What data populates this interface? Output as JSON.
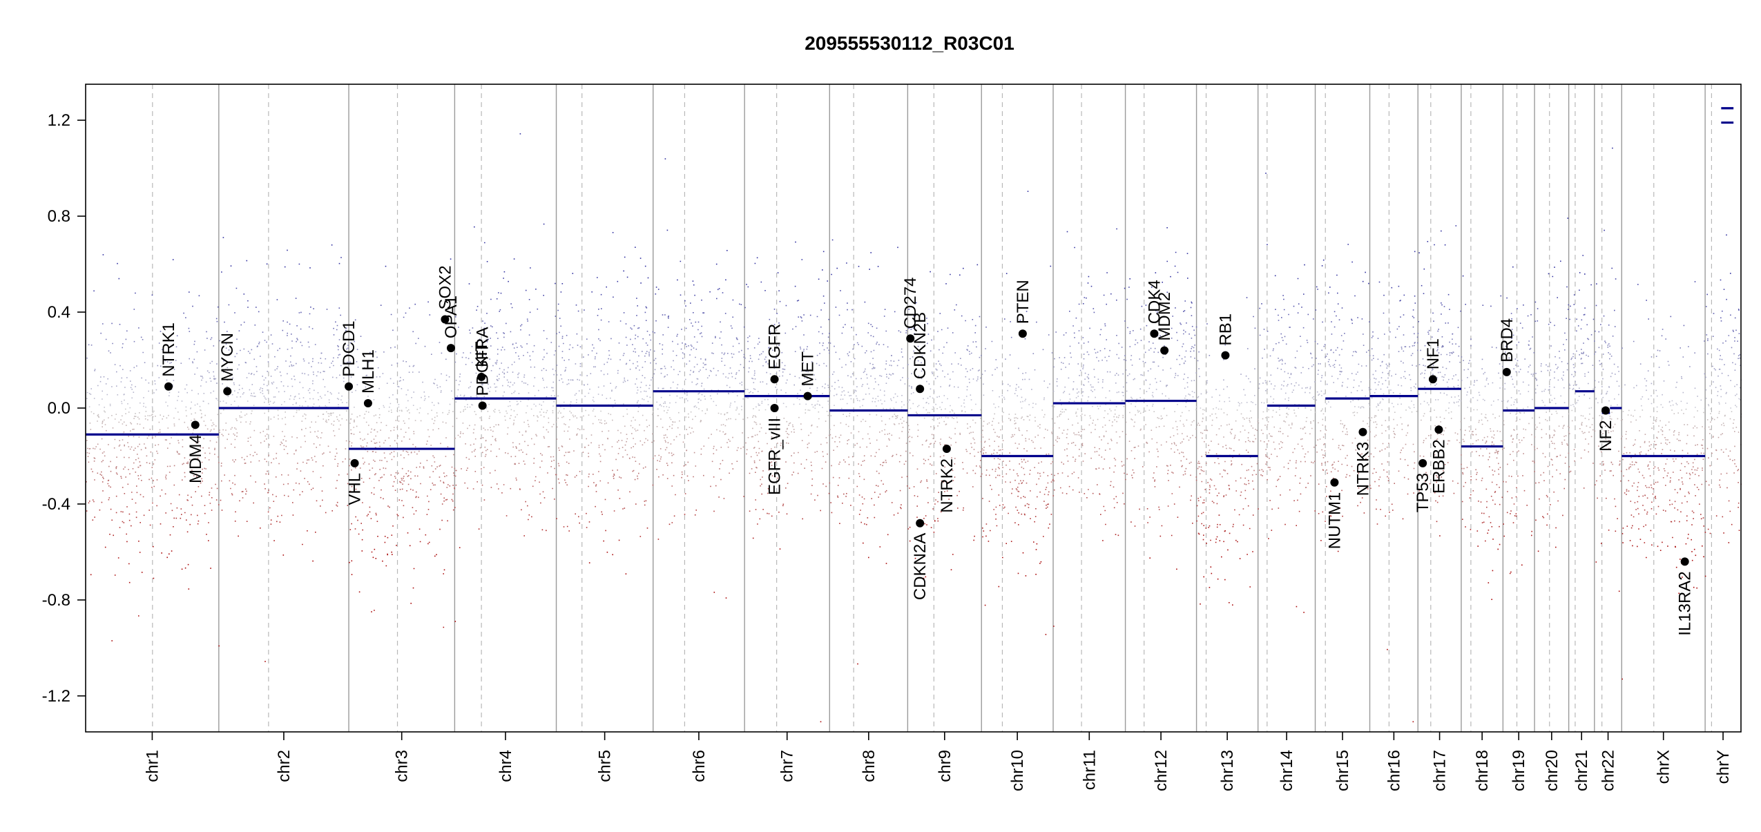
{
  "chart_data": {
    "type": "scatter",
    "title": "209555530112_R03C01",
    "ylim": [
      -1.35,
      1.35
    ],
    "yticks": [
      -1.2,
      -0.8,
      -0.4,
      0.0,
      0.4,
      0.8,
      1.2
    ],
    "ytick_labels": [
      "-1.2",
      "-0.8",
      "-0.4",
      "0.0",
      "0.4",
      "0.8",
      "1.2"
    ],
    "x_domain": [
      0,
      3095
    ],
    "grid": "vertical chromosome separators (solid) and centromere lines (dashed)",
    "chromosomes": [
      {
        "name": "chr1",
        "start": 0,
        "end": 249,
        "centromere": 125,
        "segments": [
          {
            "start": 0,
            "end": 249,
            "value": -0.11
          }
        ]
      },
      {
        "name": "chr2",
        "start": 249,
        "end": 492,
        "centromere": 342,
        "segments": [
          {
            "start": 249,
            "end": 492,
            "value": 0.0
          }
        ]
      },
      {
        "name": "chr3",
        "start": 492,
        "end": 690,
        "centromere": 583,
        "segments": [
          {
            "start": 492,
            "end": 690,
            "value": -0.17
          }
        ]
      },
      {
        "name": "chr4",
        "start": 690,
        "end": 880,
        "centromere": 740,
        "segments": [
          {
            "start": 690,
            "end": 880,
            "value": 0.04
          }
        ]
      },
      {
        "name": "chr5",
        "start": 880,
        "end": 1061,
        "centromere": 928,
        "segments": [
          {
            "start": 880,
            "end": 1061,
            "value": 0.01
          }
        ]
      },
      {
        "name": "chr6",
        "start": 1061,
        "end": 1232,
        "centromere": 1120,
        "segments": [
          {
            "start": 1061,
            "end": 1232,
            "value": 0.07
          }
        ]
      },
      {
        "name": "chr7",
        "start": 1232,
        "end": 1391,
        "centromere": 1292,
        "segments": [
          {
            "start": 1232,
            "end": 1391,
            "value": 0.05
          }
        ]
      },
      {
        "name": "chr8",
        "start": 1391,
        "end": 1537,
        "centromere": 1436,
        "segments": [
          {
            "start": 1391,
            "end": 1537,
            "value": -0.01
          }
        ]
      },
      {
        "name": "chr9",
        "start": 1537,
        "end": 1675,
        "centromere": 1586,
        "segments": [
          {
            "start": 1537,
            "end": 1675,
            "value": -0.03
          }
        ]
      },
      {
        "name": "chr10",
        "start": 1675,
        "end": 1809,
        "centromere": 1714,
        "segments": [
          {
            "start": 1675,
            "end": 1809,
            "value": -0.2
          }
        ]
      },
      {
        "name": "chr11",
        "start": 1809,
        "end": 1944,
        "centromere": 1862,
        "segments": [
          {
            "start": 1809,
            "end": 1944,
            "value": 0.02
          }
        ]
      },
      {
        "name": "chr12",
        "start": 1944,
        "end": 2077,
        "centromere": 1979,
        "segments": [
          {
            "start": 1944,
            "end": 2077,
            "value": 0.03
          }
        ]
      },
      {
        "name": "chr13",
        "start": 2077,
        "end": 2192,
        "centromere": 2095,
        "segments": [
          {
            "start": 2095,
            "end": 2192,
            "value": -0.2
          }
        ]
      },
      {
        "name": "chr14",
        "start": 2192,
        "end": 2299,
        "centromere": 2209,
        "segments": [
          {
            "start": 2209,
            "end": 2299,
            "value": 0.01
          }
        ]
      },
      {
        "name": "chr15",
        "start": 2299,
        "end": 2401,
        "centromere": 2318,
        "segments": [
          {
            "start": 2318,
            "end": 2401,
            "value": 0.04
          }
        ]
      },
      {
        "name": "chr16",
        "start": 2401,
        "end": 2491,
        "centromere": 2437,
        "segments": [
          {
            "start": 2401,
            "end": 2491,
            "value": 0.05
          }
        ]
      },
      {
        "name": "chr17",
        "start": 2491,
        "end": 2572,
        "centromere": 2515,
        "segments": [
          {
            "start": 2491,
            "end": 2572,
            "value": 0.08
          }
        ]
      },
      {
        "name": "chr18",
        "start": 2572,
        "end": 2650,
        "centromere": 2590,
        "segments": [
          {
            "start": 2572,
            "end": 2650,
            "value": -0.16
          }
        ]
      },
      {
        "name": "chr19",
        "start": 2650,
        "end": 2709,
        "centromere": 2676,
        "segments": [
          {
            "start": 2650,
            "end": 2709,
            "value": -0.01
          }
        ]
      },
      {
        "name": "chr20",
        "start": 2709,
        "end": 2773,
        "centromere": 2737,
        "segments": [
          {
            "start": 2709,
            "end": 2773,
            "value": 0.0
          }
        ]
      },
      {
        "name": "chr21",
        "start": 2773,
        "end": 2821,
        "centromere": 2785,
        "segments": [
          {
            "start": 2785,
            "end": 2821,
            "value": 0.07
          }
        ]
      },
      {
        "name": "chr22",
        "start": 2821,
        "end": 2872,
        "centromere": 2835,
        "segments": [
          {
            "start": 2835,
            "end": 2850,
            "value": -0.02
          },
          {
            "start": 2850,
            "end": 2872,
            "value": 0.0
          }
        ]
      },
      {
        "name": "chrX",
        "start": 2872,
        "end": 3028,
        "centromere": 2932,
        "segments": [
          {
            "start": 2872,
            "end": 3028,
            "value": -0.2
          }
        ]
      },
      {
        "name": "chrY",
        "start": 3028,
        "end": 3095,
        "centromere": 3040,
        "segments": [
          {
            "start": 3058,
            "end": 3081,
            "value": 1.19
          },
          {
            "start": 3058,
            "end": 3081,
            "value": 1.25
          }
        ]
      }
    ],
    "genes": [
      {
        "name": "NTRK1",
        "x": 155,
        "y": 0.09,
        "label": "above"
      },
      {
        "name": "MDM4",
        "x": 205,
        "y": -0.07,
        "label": "below"
      },
      {
        "name": "MYCN",
        "x": 265,
        "y": 0.07,
        "label": "above"
      },
      {
        "name": "PDCD1",
        "x": 492,
        "y": 0.09,
        "label": "above"
      },
      {
        "name": "VHL",
        "x": 503,
        "y": -0.23,
        "label": "below"
      },
      {
        "name": "MLH1",
        "x": 528,
        "y": 0.02,
        "label": "above"
      },
      {
        "name": "SOX2",
        "x": 672,
        "y": 0.37,
        "label": "above"
      },
      {
        "name": "OPA1",
        "x": 683,
        "y": 0.25,
        "label": "above"
      },
      {
        "name": "KIT",
        "x": 740,
        "y": 0.13,
        "label": "above"
      },
      {
        "name": "PDGFRA",
        "x": 742,
        "y": 0.01,
        "label": "above"
      },
      {
        "name": "EGFR",
        "x": 1288,
        "y": 0.12,
        "label": "above"
      },
      {
        "name": "EGFR_vIII",
        "x": 1288,
        "y": 0.0,
        "label": "below"
      },
      {
        "name": "MET",
        "x": 1350,
        "y": 0.05,
        "label": "above"
      },
      {
        "name": "CD274",
        "x": 1542,
        "y": 0.29,
        "label": "above"
      },
      {
        "name": "CDKN2B",
        "x": 1560,
        "y": 0.08,
        "label": "above"
      },
      {
        "name": "CDKN2A",
        "x": 1560,
        "y": -0.48,
        "label": "below"
      },
      {
        "name": "NTRK2",
        "x": 1610,
        "y": -0.17,
        "label": "below"
      },
      {
        "name": "PTEN",
        "x": 1752,
        "y": 0.31,
        "label": "above"
      },
      {
        "name": "CDK4",
        "x": 1998,
        "y": 0.31,
        "label": "above"
      },
      {
        "name": "MDM2",
        "x": 2017,
        "y": 0.24,
        "label": "above"
      },
      {
        "name": "RB1",
        "x": 2131,
        "y": 0.22,
        "label": "above"
      },
      {
        "name": "NUTM1",
        "x": 2335,
        "y": -0.31,
        "label": "below"
      },
      {
        "name": "NTRK3",
        "x": 2388,
        "y": -0.1,
        "label": "below"
      },
      {
        "name": "TP53",
        "x": 2500,
        "y": -0.23,
        "label": "below"
      },
      {
        "name": "NF1",
        "x": 2519,
        "y": 0.12,
        "label": "above"
      },
      {
        "name": "ERBB2",
        "x": 2530,
        "y": -0.09,
        "label": "below"
      },
      {
        "name": "BRD4",
        "x": 2657,
        "y": 0.15,
        "label": "above"
      },
      {
        "name": "NF2",
        "x": 2842,
        "y": -0.01,
        "label": "below"
      },
      {
        "name": "IL13RA2",
        "x": 2990,
        "y": -0.64,
        "label": "below"
      }
    ]
  }
}
